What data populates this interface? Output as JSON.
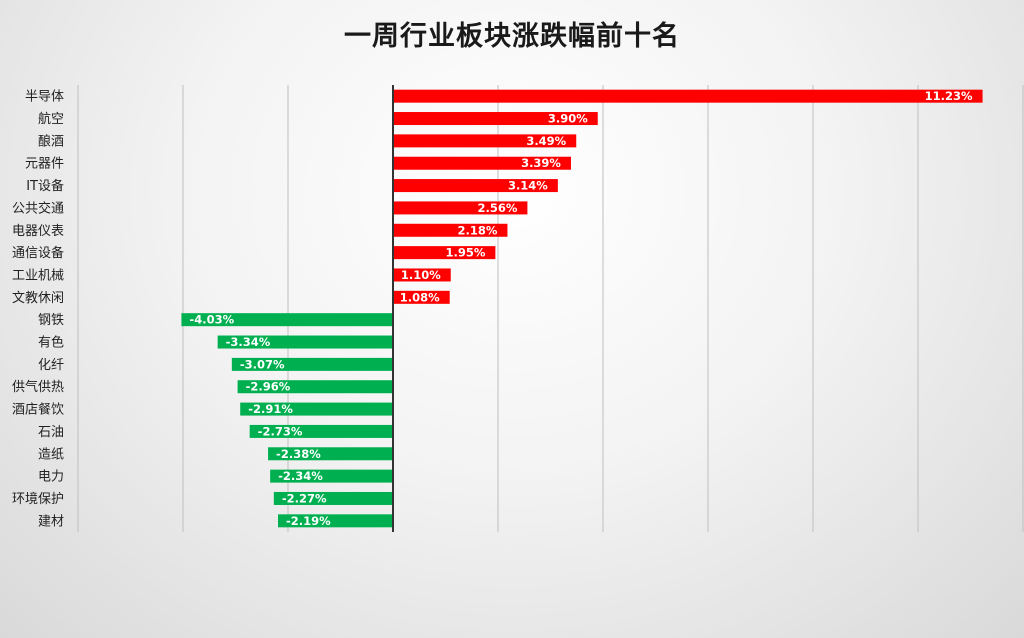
{
  "chart_data": {
    "type": "bar",
    "orientation": "horizontal",
    "title": "一周行业板块涨跌幅前十名",
    "xlabel": "",
    "ylabel": "",
    "xlim": [
      -6,
      12
    ],
    "grid": true,
    "legend": "none",
    "colors": {
      "positive": "#ff0000",
      "negative": "#00b050",
      "axis": "#333333",
      "grid": "#bfbfbf"
    },
    "categories": [
      "半导体",
      "航空",
      "酿酒",
      "元器件",
      "IT设备",
      "公共交通",
      "电器仪表",
      "通信设备",
      "工业机械",
      "文教休闲",
      "钢铁",
      "有色",
      "化纤",
      "供气供热",
      "酒店餐饮",
      "石油",
      "造纸",
      "电力",
      "环境保护",
      "建材"
    ],
    "values": [
      11.23,
      3.9,
      3.49,
      3.39,
      3.14,
      2.56,
      2.18,
      1.95,
      1.1,
      1.08,
      -4.03,
      -3.34,
      -3.07,
      -2.96,
      -2.91,
      -2.73,
      -2.38,
      -2.34,
      -2.27,
      -2.19
    ],
    "value_labels": [
      "11.23%",
      "3.90%",
      "3.49%",
      "3.39%",
      "3.14%",
      "2.56%",
      "2.18%",
      "1.95%",
      "1.10%",
      "1.08%",
      "-4.03%",
      "-3.34%",
      "-3.07%",
      "-2.96%",
      "-2.91%",
      "-2.73%",
      "-2.38%",
      "-2.34%",
      "-2.27%",
      "-2.19%"
    ]
  }
}
